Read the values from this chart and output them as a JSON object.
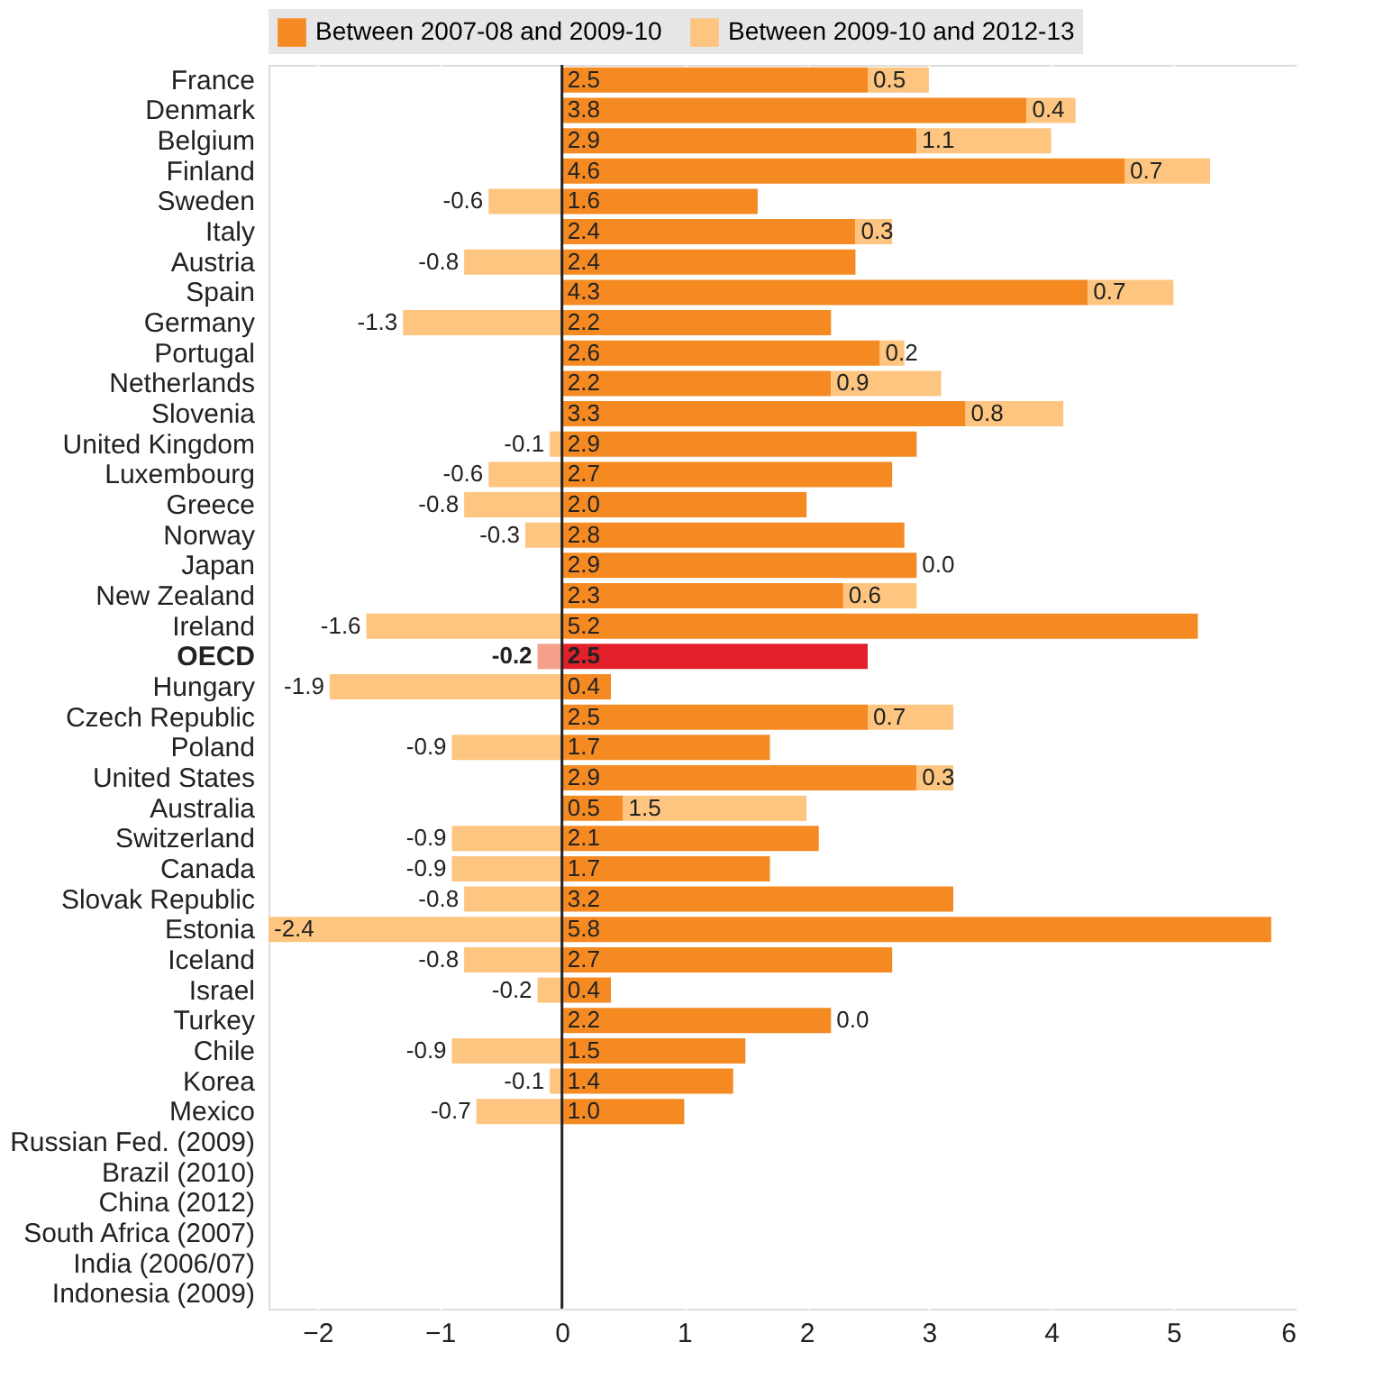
{
  "chart_data": {
    "type": "bar",
    "orientation": "horizontal",
    "stacked": true,
    "categories": [
      "France",
      "Denmark",
      "Belgium",
      "Finland",
      "Sweden",
      "Italy",
      "Austria",
      "Spain",
      "Germany",
      "Portugal",
      "Netherlands",
      "Slovenia",
      "United Kingdom",
      "Luxembourg",
      "Greece",
      "Norway",
      "Japan",
      "New Zealand",
      "Ireland",
      "OECD",
      "Hungary",
      "Czech Republic",
      "Poland",
      "United States",
      "Australia",
      "Switzerland",
      "Canada",
      "Slovak Republic",
      "Estonia",
      "Iceland",
      "Israel",
      "Turkey",
      "Chile",
      "Korea",
      "Mexico",
      "Russian Fed. (2009)",
      "Brazil (2010)",
      "China (2012)",
      "South Africa (2007)",
      "India (2006/07)",
      "Indonesia (2009)"
    ],
    "series": [
      {
        "name": "Between 2007-08 and 2009-10",
        "color": "#f58a23",
        "colors": [
          "#f58a23",
          "#f58a23",
          "#f58a23",
          "#f58a23",
          "#f58a23",
          "#f58a23",
          "#f58a23",
          "#f58a23",
          "#f58a23",
          "#f58a23",
          "#f58a23",
          "#f58a23",
          "#f58a23",
          "#f58a23",
          "#f58a23",
          "#f58a23",
          "#f58a23",
          "#f58a23",
          "#f58a23",
          "#e2202b",
          "#f58a23",
          "#f58a23",
          "#f58a23",
          "#f58a23",
          "#f58a23",
          "#f58a23",
          "#f58a23",
          "#f58a23",
          "#f58a23",
          "#f58a23",
          "#f58a23",
          "#f58a23",
          "#f58a23",
          "#f58a23",
          "#f58a23",
          "#f58a23",
          "#f58a23",
          "#f58a23",
          "#f58a23",
          "#f58a23",
          "#f58a23"
        ],
        "values": [
          2.5,
          3.8,
          2.9,
          4.6,
          1.6,
          2.4,
          2.4,
          4.3,
          2.2,
          2.6,
          2.2,
          3.3,
          2.9,
          2.7,
          2.0,
          2.8,
          2.9,
          2.3,
          5.2,
          2.5,
          0.4,
          2.5,
          1.7,
          2.9,
          0.5,
          2.1,
          1.7,
          3.2,
          5.8,
          2.7,
          0.4,
          2.2,
          1.5,
          1.4,
          1.0,
          null,
          null,
          null,
          null,
          null,
          null
        ],
        "value_labels": [
          "2.5",
          "3.8",
          "2.9",
          "4.6",
          "1.6",
          "2.4",
          "2.4",
          "4.3",
          "2.2",
          "2.6",
          "2.2",
          "3.3",
          "2.9",
          "2.7",
          "2.0",
          "2.8",
          "2.9",
          "2.3",
          "5.2",
          "2.5",
          "0.4",
          "2.5",
          "1.7",
          "2.9",
          "0.5",
          "2.1",
          "1.7",
          "3.2",
          "5.8",
          "2.7",
          "0.4",
          "2.2",
          "1.5",
          "1.4",
          "1.0",
          null,
          null,
          null,
          null,
          null,
          null
        ]
      },
      {
        "name": "Between 2009-10 and 2012-13",
        "color": "#fdc57f",
        "colors": [
          "#fdc57f",
          "#fdc57f",
          "#fdc57f",
          "#fdc57f",
          "#fdc57f",
          "#fdc57f",
          "#fdc57f",
          "#fdc57f",
          "#fdc57f",
          "#fdc57f",
          "#fdc57f",
          "#fdc57f",
          "#fdc57f",
          "#fdc57f",
          "#fdc57f",
          "#fdc57f",
          "#fdc57f",
          "#fdc57f",
          "#fdc57f",
          "#f4a08a",
          "#fdc57f",
          "#fdc57f",
          "#fdc57f",
          "#fdc57f",
          "#fdc57f",
          "#fdc57f",
          "#fdc57f",
          "#fdc57f",
          "#fdc57f",
          "#fdc57f",
          "#fdc57f",
          "#fdc57f",
          "#fdc57f",
          "#fdc57f",
          "#fdc57f",
          "#fdc57f",
          "#fdc57f",
          "#fdc57f",
          "#fdc57f",
          "#fdc57f",
          "#fdc57f"
        ],
        "values": [
          0.5,
          0.4,
          1.1,
          0.7,
          -0.6,
          0.3,
          -0.8,
          0.7,
          -1.3,
          0.2,
          0.9,
          0.8,
          -0.1,
          -0.6,
          -0.8,
          -0.3,
          0.0,
          0.6,
          -1.6,
          -0.2,
          -1.9,
          0.7,
          -0.9,
          0.3,
          1.5,
          -0.9,
          -0.9,
          -0.8,
          -2.4,
          -0.8,
          -0.2,
          0.0,
          -0.9,
          -0.1,
          -0.7,
          null,
          null,
          null,
          null,
          null,
          null
        ],
        "value_labels": [
          "0.5",
          "0.4",
          "1.1",
          "0.7",
          "-0.6",
          "0.3",
          "-0.8",
          "0.7",
          "-1.3",
          "0.2",
          "0.9",
          "0.8",
          "-0.1",
          "-0.6",
          "-0.8",
          "-0.3",
          "0.0",
          "0.6",
          "-1.6",
          "-0.2",
          "-1.9",
          "0.7",
          "-0.9",
          "0.3",
          "1.5",
          "-0.9",
          "-0.9",
          "-0.8",
          "-2.4",
          "-0.8",
          "-0.2",
          "0.0",
          "-0.9",
          "-0.1",
          "-0.7",
          null,
          null,
          null,
          null,
          null,
          null
        ]
      }
    ],
    "xlim": [
      -2.4,
      6
    ],
    "xticks": [
      -2,
      -1,
      0,
      1,
      2,
      3,
      4,
      5,
      6
    ],
    "grid": "x",
    "legend": "top"
  }
}
